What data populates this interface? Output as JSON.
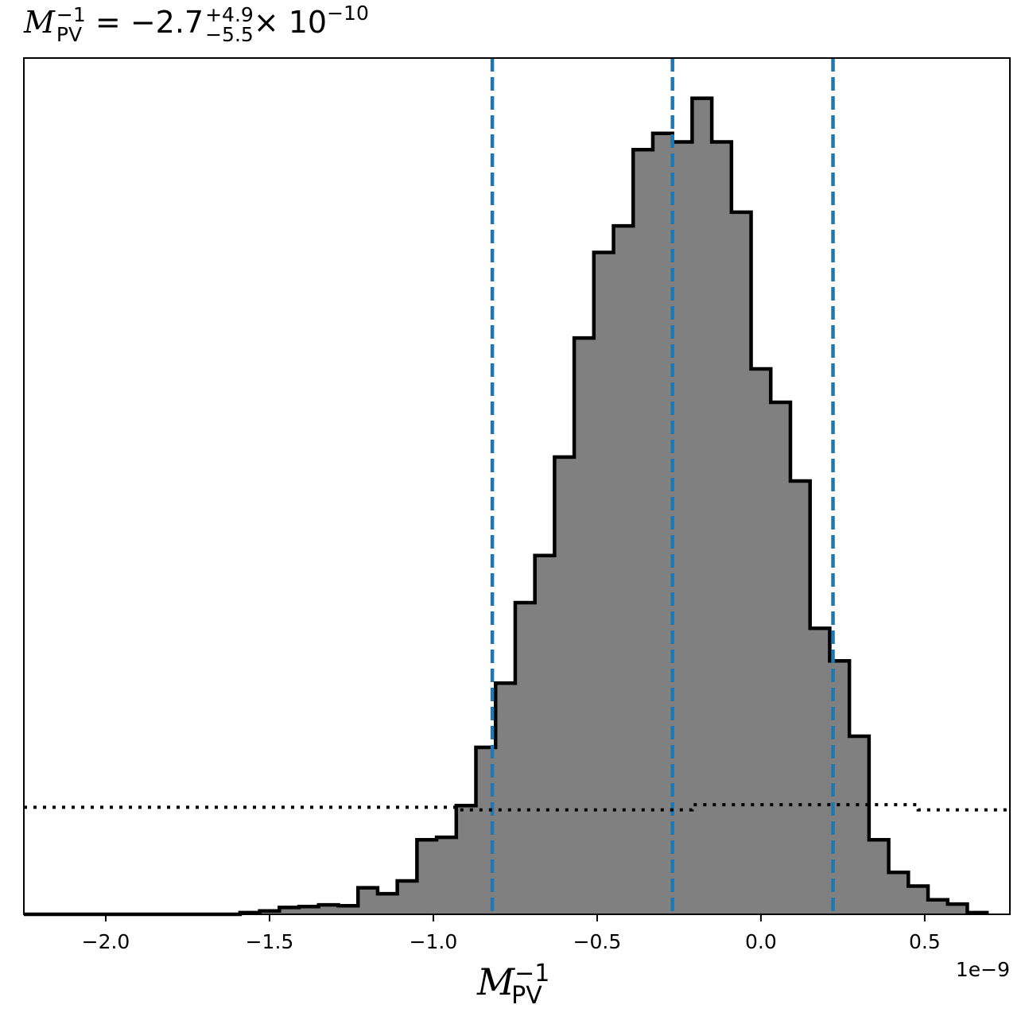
{
  "title": {
    "lhs_symbol": "M",
    "lhs_superscript": "−1",
    "lhs_subscript": "PV",
    "equals": "=",
    "central_value": "−2.7",
    "upper_error": "+4.9",
    "lower_error": "−5.5",
    "times": "×",
    "exponent_base": "10",
    "exponent": "−10"
  },
  "xlabel": {
    "symbol": "M",
    "superscript": "−1",
    "subscript": "PV"
  },
  "offset_text": "1e−9",
  "chart_data": {
    "type": "bar",
    "subtype": "step-histogram",
    "x_scale_factor": "1e-9",
    "xlim": [
      -2.25,
      0.76
    ],
    "ylim": [
      0,
      100
    ],
    "y_axis_ticks_visible": false,
    "x_ticks": [
      -2.0,
      -1.5,
      -1.0,
      -0.5,
      0.0,
      0.5
    ],
    "x_tick_labels": [
      "−2.0",
      "−1.5",
      "−1.0",
      "−0.5",
      "0.0",
      "0.5"
    ],
    "bin_edges": [
      -2.25,
      -1.59,
      -1.53,
      -1.47,
      -1.41,
      -1.35,
      -1.29,
      -1.23,
      -1.17,
      -1.11,
      -1.05,
      -0.99,
      -0.93,
      -0.87,
      -0.81,
      -0.75,
      -0.69,
      -0.63,
      -0.57,
      -0.51,
      -0.45,
      -0.39,
      -0.33,
      -0.27,
      -0.21,
      -0.15,
      -0.09,
      -0.03,
      0.03,
      0.09,
      0.15,
      0.21,
      0.27,
      0.33,
      0.39,
      0.45,
      0.51,
      0.57,
      0.63,
      0.69
    ],
    "counts": [
      0,
      0.2,
      0.4,
      0.8,
      0.9,
      1.1,
      1.0,
      3.1,
      2.4,
      3.9,
      8.7,
      9.0,
      12.7,
      19.5,
      27.0,
      36.4,
      41.9,
      53.4,
      67.3,
      77.3,
      80.4,
      89.3,
      91.2,
      90.2,
      95.3,
      90.2,
      82.0,
      63.7,
      59.8,
      50.6,
      33.4,
      29.6,
      20.8,
      8.7,
      4.9,
      3.3,
      1.7,
      1.2,
      0.2
    ],
    "fill_color": "#808080",
    "edge_color": "#000000",
    "vertical_lines": [
      {
        "x": -0.82,
        "color": "#1f77b4",
        "style": "dashed"
      },
      {
        "x": -0.27,
        "color": "#1f77b4",
        "style": "dashed"
      },
      {
        "x": 0.22,
        "color": "#1f77b4",
        "style": "dashed"
      }
    ],
    "prior_line": {
      "style": "dotted",
      "color": "#000000",
      "x": [
        -2.25,
        -0.93,
        -0.93,
        -0.21,
        -0.21,
        0.48,
        0.48,
        0.76
      ],
      "y": [
        12.5,
        12.5,
        12.2,
        12.2,
        12.8,
        12.8,
        12.2,
        12.2
      ]
    }
  }
}
